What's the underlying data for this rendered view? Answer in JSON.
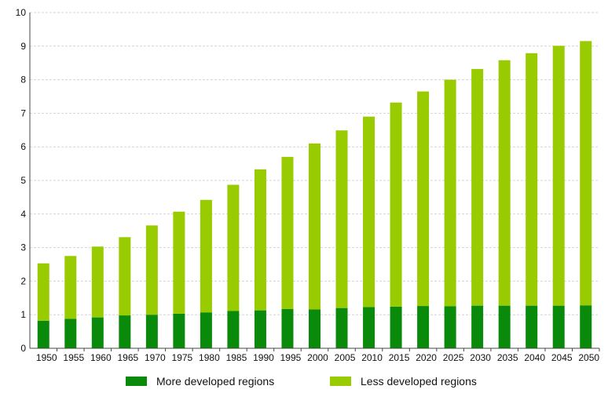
{
  "chart_data": {
    "type": "bar",
    "stacked": true,
    "title": "",
    "xlabel": "",
    "ylabel": "",
    "ylim": [
      0,
      10
    ],
    "yticks": [
      "0",
      "1",
      "2",
      "3",
      "4",
      "5",
      "6",
      "7",
      "8",
      "9",
      "10"
    ],
    "grid": true,
    "legend_position": "bottom",
    "categories": [
      "1950",
      "1955",
      "1960",
      "1965",
      "1970",
      "1975",
      "1980",
      "1985",
      "1990",
      "1995",
      "2000",
      "2005",
      "2010",
      "2015",
      "2020",
      "2025",
      "2030",
      "2035",
      "2040",
      "2045",
      "2050"
    ],
    "series": [
      {
        "name": "More developed regions",
        "color": "#0a8a0a",
        "values": [
          0.82,
          0.88,
          0.92,
          0.98,
          1.0,
          1.03,
          1.07,
          1.11,
          1.13,
          1.17,
          1.16,
          1.2,
          1.23,
          1.24,
          1.26,
          1.25,
          1.27,
          1.27,
          1.27,
          1.27,
          1.28
        ]
      },
      {
        "name": "Less developed regions",
        "color": "#99cc00",
        "values": [
          1.71,
          1.87,
          2.11,
          2.33,
          2.66,
          3.04,
          3.35,
          3.76,
          4.2,
          4.53,
          4.94,
          5.29,
          5.67,
          6.08,
          6.39,
          6.75,
          7.05,
          7.31,
          7.52,
          7.74,
          7.87
        ]
      }
    ]
  }
}
